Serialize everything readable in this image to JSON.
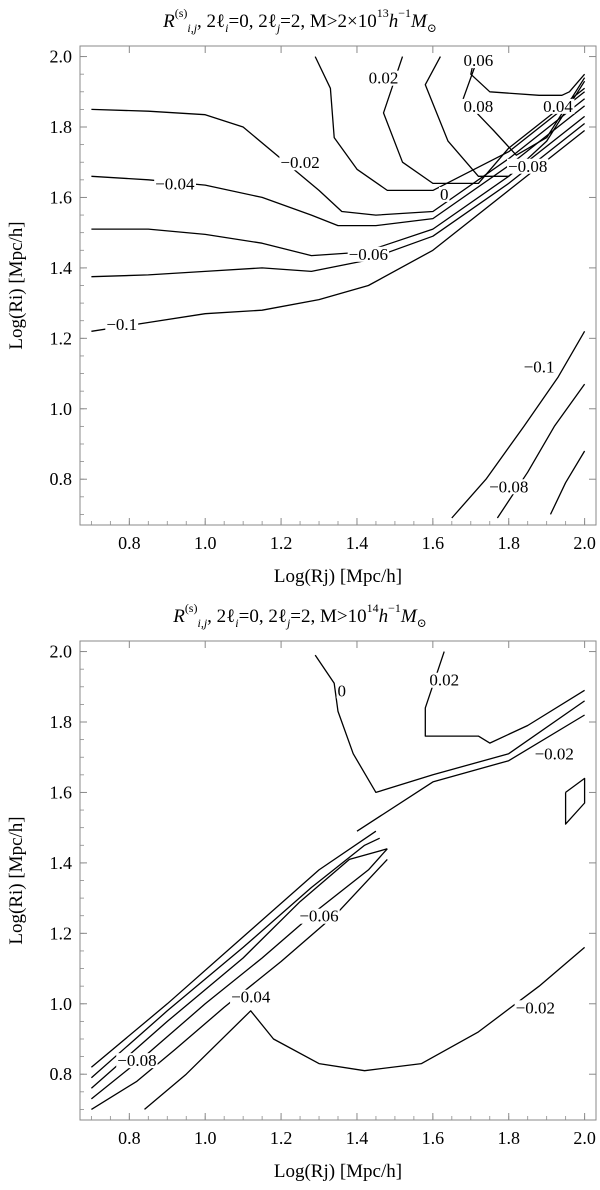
{
  "chart_data": [
    {
      "type": "contour",
      "title": {
        "main": "R",
        "superscript": "(s)",
        "subscript": "i,j",
        "rest": ",  2ℓ",
        "rest_sub1": "i",
        "rest2": "=0, 2ℓ",
        "rest_sub2": "j",
        "rest3": "=2,  M>2×10",
        "exp": "13",
        "rest4": "h",
        "exp2": "−1",
        "rest5": "M",
        "rest6": "⊙"
      },
      "xlabel": "Log(Rj) [Mpc/h]",
      "ylabel": "Log(Ri) [Mpc/h]",
      "xlim": [
        0.67,
        2.03
      ],
      "ylim": [
        0.67,
        2.03
      ],
      "xticks": [
        "0.8",
        "1.0",
        "1.2",
        "1.4",
        "1.6",
        "1.8",
        "2.0"
      ],
      "yticks": [
        "0.8",
        "1.0",
        "1.2",
        "1.4",
        "1.6",
        "1.8",
        "2.0"
      ],
      "contours": [
        {
          "level": "−0.1",
          "points": [
            [
              0.7,
              1.22
            ],
            [
              0.85,
              1.245
            ],
            [
              1.0,
              1.27
            ],
            [
              1.15,
              1.28
            ],
            [
              1.3,
              1.31
            ],
            [
              1.43,
              1.35
            ],
            [
              1.6,
              1.45
            ],
            [
              1.8,
              1.62
            ],
            [
              2.0,
              1.79
            ]
          ]
        },
        {
          "level": "",
          "points": [
            [
              0.7,
              1.375
            ],
            [
              0.85,
              1.38
            ],
            [
              1.0,
              1.39
            ],
            [
              1.15,
              1.4
            ],
            [
              1.28,
              1.39
            ],
            [
              1.42,
              1.42
            ],
            [
              1.6,
              1.49
            ],
            [
              1.8,
              1.64
            ],
            [
              2.0,
              1.81
            ]
          ]
        },
        {
          "level": "",
          "points": [
            [
              0.7,
              1.51
            ],
            [
              0.85,
              1.51
            ],
            [
              1.0,
              1.495
            ],
            [
              1.15,
              1.47
            ],
            [
              1.28,
              1.435
            ],
            [
              1.42,
              1.445
            ],
            [
              1.6,
              1.51
            ],
            [
              1.8,
              1.66
            ],
            [
              2.0,
              1.83
            ]
          ]
        },
        {
          "level": "−0.04",
          "points": [
            [
              0.7,
              1.66
            ],
            [
              0.85,
              1.65
            ],
            [
              1.0,
              1.635
            ],
            [
              1.15,
              1.6
            ],
            [
              1.28,
              1.55
            ],
            [
              1.35,
              1.52
            ],
            [
              1.45,
              1.52
            ],
            [
              1.6,
              1.54
            ],
            [
              1.8,
              1.69
            ],
            [
              2.0,
              1.86
            ]
          ]
        },
        {
          "level": "−0.02",
          "points": [
            [
              0.7,
              1.85
            ],
            [
              0.85,
              1.845
            ],
            [
              1.0,
              1.835
            ],
            [
              1.1,
              1.8
            ],
            [
              1.2,
              1.71
            ],
            [
              1.3,
              1.62
            ],
            [
              1.36,
              1.56
            ],
            [
              1.45,
              1.55
            ],
            [
              1.6,
              1.56
            ],
            [
              1.8,
              1.71
            ],
            [
              2.0,
              1.88
            ]
          ]
        },
        {
          "level": "0",
          "points": [
            [
              1.29,
              2.0
            ],
            [
              1.33,
              1.91
            ],
            [
              1.34,
              1.77
            ],
            [
              1.4,
              1.68
            ],
            [
              1.48,
              1.62
            ],
            [
              1.6,
              1.62
            ],
            [
              1.8,
              1.73
            ],
            [
              2.0,
              1.9
            ]
          ]
        },
        {
          "level": "0.02",
          "points": [
            [
              1.52,
              2.0
            ],
            [
              1.47,
              1.84
            ],
            [
              1.52,
              1.7
            ],
            [
              1.6,
              1.64
            ],
            [
              1.72,
              1.64
            ],
            [
              1.8,
              1.74
            ],
            [
              2.0,
              1.91
            ]
          ]
        },
        {
          "level": "",
          "points": [
            [
              1.62,
              2.0
            ],
            [
              1.58,
              1.92
            ],
            [
              1.64,
              1.76
            ],
            [
              1.72,
              1.66
            ],
            [
              1.8,
              1.66
            ],
            [
              1.9,
              1.76
            ],
            [
              2.0,
              1.93
            ]
          ]
        },
        {
          "level": "",
          "points": [
            [
              1.72,
              2.0
            ],
            [
              1.68,
              1.88
            ],
            [
              1.76,
              1.79
            ],
            [
              1.82,
              1.72
            ],
            [
              1.9,
              1.77
            ],
            [
              2.0,
              1.94
            ]
          ]
        },
        {
          "level": "0.08",
          "points": [
            [
              1.71,
              2.0
            ],
            [
              1.7,
              1.95
            ],
            [
              1.75,
              1.9
            ],
            [
              1.88,
              1.89
            ],
            [
              1.94,
              1.89
            ],
            [
              1.96,
              1.9
            ],
            [
              2.0,
              1.95
            ]
          ]
        },
        {
          "level": "−0.1",
          "points": [
            [
              1.65,
              0.69
            ],
            [
              1.74,
              0.8
            ],
            [
              1.84,
              0.95
            ],
            [
              1.93,
              1.09
            ],
            [
              2.0,
              1.22
            ]
          ]
        },
        {
          "level": "",
          "points": [
            [
              1.77,
              0.69
            ],
            [
              1.85,
              0.82
            ],
            [
              1.92,
              0.95
            ],
            [
              2.0,
              1.07
            ]
          ]
        },
        {
          "level": "",
          "points": [
            [
              1.91,
              0.7
            ],
            [
              1.95,
              0.79
            ],
            [
              2.0,
              0.88
            ]
          ]
        }
      ],
      "labels": [
        {
          "text": "0.02",
          "x": 1.47,
          "y": 1.94
        },
        {
          "text": "0.06",
          "x": 1.72,
          "y": 1.99
        },
        {
          "text": "0.08",
          "x": 1.72,
          "y": 1.86
        },
        {
          "text": "0.04",
          "x": 1.93,
          "y": 1.86
        },
        {
          "text": "−0.02",
          "x": 1.25,
          "y": 1.7
        },
        {
          "text": "−0.04",
          "x": 0.92,
          "y": 1.64
        },
        {
          "text": "0",
          "x": 1.63,
          "y": 1.61
        },
        {
          "text": "−0.08",
          "x": 1.85,
          "y": 1.69
        },
        {
          "text": "−0.06",
          "x": 1.43,
          "y": 1.44
        },
        {
          "text": "−0.1",
          "x": 0.78,
          "y": 1.24
        },
        {
          "text": "−0.1",
          "x": 1.88,
          "y": 1.12
        },
        {
          "text": "−0.08",
          "x": 1.8,
          "y": 0.78
        }
      ]
    },
    {
      "type": "contour",
      "title": {
        "main": "R",
        "superscript": "(s)",
        "subscript": "i,j",
        "rest": ",  2ℓ",
        "rest_sub1": "i",
        "rest2": "=0, 2ℓ",
        "rest_sub2": "j",
        "rest3": "=2,  M>10",
        "exp": "14",
        "rest4": "h",
        "exp2": "−1",
        "rest5": "M",
        "rest6": "⊙"
      },
      "xlabel": "Log(Rj) [Mpc/h]",
      "ylabel": "Log(Ri) [Mpc/h]",
      "xlim": [
        0.67,
        2.03
      ],
      "ylim": [
        0.67,
        2.03
      ],
      "xticks": [
        "0.8",
        "1.0",
        "1.2",
        "1.4",
        "1.6",
        "1.8",
        "2.0"
      ],
      "yticks": [
        "0.8",
        "1.0",
        "1.2",
        "1.4",
        "1.6",
        "1.8",
        "2.0"
      ],
      "contours": [
        {
          "level": "0",
          "points": [
            [
              1.29,
              1.99
            ],
            [
              1.34,
              1.91
            ],
            [
              1.35,
              1.83
            ],
            [
              1.39,
              1.71
            ],
            [
              1.45,
              1.6
            ],
            [
              1.6,
              1.65
            ],
            [
              1.8,
              1.71
            ],
            [
              2.0,
              1.86
            ]
          ]
        },
        {
          "level": "0.02",
          "points": [
            [
              1.63,
              2.0
            ],
            [
              1.58,
              1.84
            ],
            [
              1.58,
              1.76
            ],
            [
              1.72,
              1.76
            ],
            [
              1.75,
              1.74
            ],
            [
              1.85,
              1.79
            ],
            [
              2.0,
              1.89
            ]
          ]
        },
        {
          "level": "−0.02",
          "points": [
            [
              1.4,
              1.49
            ],
            [
              1.6,
              1.63
            ],
            [
              1.8,
              1.69
            ],
            [
              2.0,
              1.82
            ]
          ]
        },
        {
          "level": "",
          "points": [
            [
              0.7,
              0.82
            ],
            [
              0.9,
              1.0
            ],
            [
              1.1,
              1.19
            ],
            [
              1.3,
              1.38
            ],
            [
              1.45,
              1.49
            ]
          ]
        },
        {
          "level": "−0.06",
          "points": [
            [
              0.7,
              0.79
            ],
            [
              0.9,
              0.98
            ],
            [
              1.1,
              1.16
            ],
            [
              1.28,
              1.33
            ],
            [
              1.42,
              1.45
            ],
            [
              1.46,
              1.47
            ]
          ]
        },
        {
          "level": "",
          "points": [
            [
              0.7,
              0.76
            ],
            [
              0.9,
              0.95
            ],
            [
              1.1,
              1.13
            ],
            [
              1.25,
              1.29
            ],
            [
              1.38,
              1.41
            ],
            [
              1.48,
              1.44
            ]
          ]
        },
        {
          "level": "−0.04",
          "points": [
            [
              0.7,
              0.73
            ],
            [
              0.85,
              0.86
            ],
            [
              1.0,
              1.0
            ],
            [
              1.15,
              1.13
            ],
            [
              1.3,
              1.27
            ],
            [
              1.43,
              1.38
            ],
            [
              1.48,
              1.44
            ]
          ]
        },
        {
          "level": "−0.08",
          "points": [
            [
              0.7,
              0.7
            ],
            [
              0.82,
              0.78
            ],
            [
              0.92,
              0.87
            ],
            [
              1.05,
              0.99
            ],
            [
              1.2,
              1.12
            ],
            [
              1.35,
              1.26
            ],
            [
              1.48,
              1.41
            ]
          ]
        },
        {
          "level": "",
          "points": [
            [
              0.84,
              0.7
            ],
            [
              0.95,
              0.8
            ],
            [
              1.12,
              0.98
            ],
            [
              1.18,
              0.9
            ],
            [
              1.3,
              0.83
            ],
            [
              1.42,
              0.81
            ],
            [
              1.57,
              0.83
            ],
            [
              1.72,
              0.92
            ],
            [
              1.88,
              1.05
            ],
            [
              2.0,
              1.16
            ]
          ]
        },
        {
          "level": "",
          "points": [
            [
              1.95,
              1.6
            ],
            [
              2.0,
              1.64
            ],
            [
              2.0,
              1.57
            ],
            [
              1.95,
              1.51
            ],
            [
              1.95,
              1.6
            ]
          ]
        }
      ],
      "labels": [
        {
          "text": "0",
          "x": 1.36,
          "y": 1.89
        },
        {
          "text": "0.02",
          "x": 1.63,
          "y": 1.92
        },
        {
          "text": "−0.02",
          "x": 1.92,
          "y": 1.71
        },
        {
          "text": "−0.06",
          "x": 1.3,
          "y": 1.25
        },
        {
          "text": "−0.04",
          "x": 1.12,
          "y": 1.02
        },
        {
          "text": "−0.02",
          "x": 1.87,
          "y": 0.99
        },
        {
          "text": "−0.08",
          "x": 0.82,
          "y": 0.84
        }
      ]
    }
  ]
}
